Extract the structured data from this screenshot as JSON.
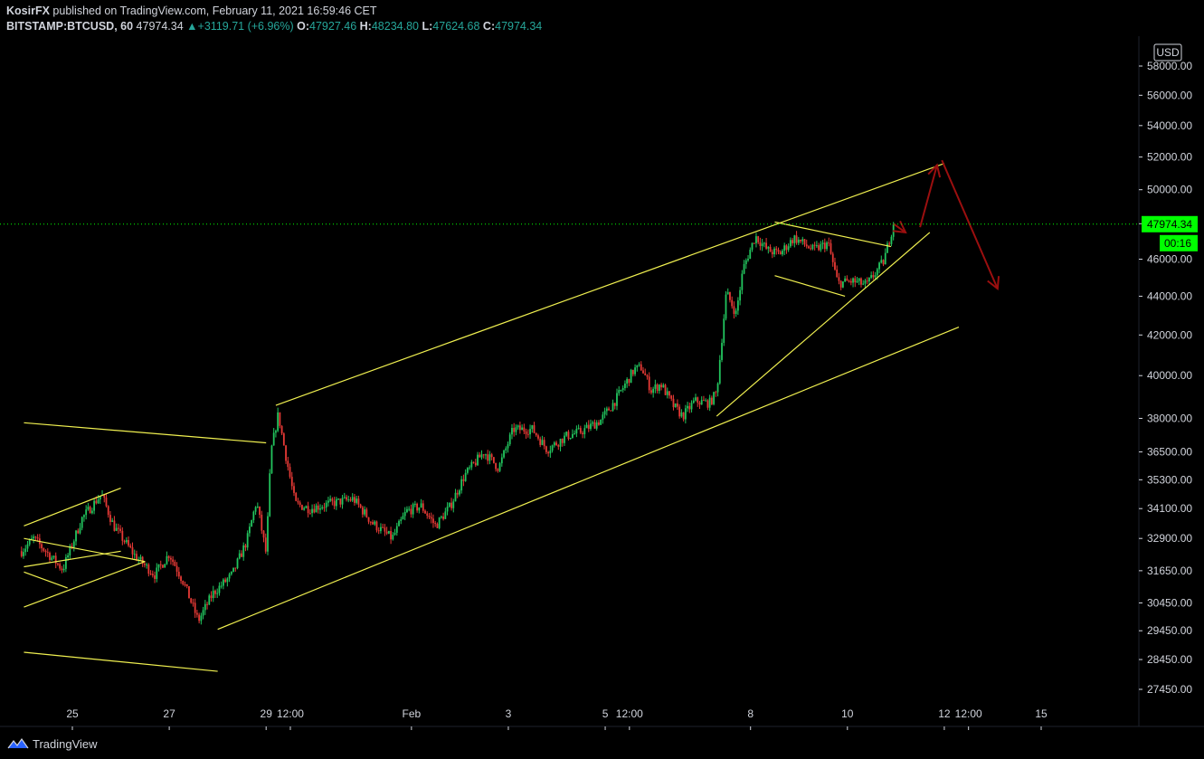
{
  "header": {
    "author": "KosirFX",
    "published_text": "published on TradingView.com, February 11, 2021 16:59:46 CET",
    "symbol_label": "BITSTAMP:BTCUSD, 60",
    "last": "47974.34",
    "change": "+3119.71 (+6.96%)",
    "ohlc": [
      {
        "k": "O:",
        "v": "47927.46"
      },
      {
        "k": "H:",
        "v": "48234.80"
      },
      {
        "k": "L:",
        "v": "47624.68"
      },
      {
        "k": "C:",
        "v": "47974.34"
      }
    ]
  },
  "footer": {
    "brand": "TradingView"
  },
  "colors": {
    "up": "#26a69a",
    "down": "#ef5350",
    "candle_up": "#22c55e",
    "candle_down": "#e53935",
    "trendline": "#f0f050",
    "arrow": "#9b0f0f",
    "price_tag": "#00ff00"
  },
  "chart_data": {
    "type": "candlestick",
    "symbol": "BITSTAMP:BTCUSD",
    "interval": "60",
    "currency": "USD",
    "last_price": "47974.34",
    "countdown": "00:16",
    "y_ticks": [
      "58000.00",
      "56000.00",
      "54000.00",
      "52000.00",
      "50000.00",
      "48000.00",
      "46000.00",
      "44000.00",
      "42000.00",
      "40000.00",
      "38000.00",
      "36500.00",
      "35300.00",
      "34100.00",
      "32900.00",
      "31650.00",
      "30450.00",
      "29450.00",
      "28450.00",
      "27450.00"
    ],
    "x_ticks": [
      "25",
      "27",
      "29",
      "12:00",
      "Feb",
      "3",
      "5",
      "12:00",
      "8",
      "10",
      "12",
      "12:00",
      "15"
    ],
    "y_scale": "log",
    "grid": false,
    "price_path": [
      {
        "d": 23.95,
        "p": 32400
      },
      {
        "d": 24.2,
        "p": 32900
      },
      {
        "d": 24.55,
        "p": 32200
      },
      {
        "d": 24.8,
        "p": 31700
      },
      {
        "d": 25.2,
        "p": 33700
      },
      {
        "d": 25.6,
        "p": 34700
      },
      {
        "d": 25.85,
        "p": 33400
      },
      {
        "d": 26.3,
        "p": 32200
      },
      {
        "d": 26.7,
        "p": 31500
      },
      {
        "d": 27.0,
        "p": 32300
      },
      {
        "d": 27.3,
        "p": 31200
      },
      {
        "d": 27.6,
        "p": 29800
      },
      {
        "d": 27.9,
        "p": 30800
      },
      {
        "d": 28.3,
        "p": 31500
      },
      {
        "d": 28.6,
        "p": 32800
      },
      {
        "d": 28.8,
        "p": 34400
      },
      {
        "d": 29.0,
        "p": 32300
      },
      {
        "d": 29.1,
        "p": 36500
      },
      {
        "d": 29.25,
        "p": 38200
      },
      {
        "d": 29.4,
        "p": 36400
      },
      {
        "d": 29.6,
        "p": 34300
      },
      {
        "d": 29.9,
        "p": 34100
      },
      {
        "d": 30.3,
        "p": 34300
      },
      {
        "d": 30.8,
        "p": 34500
      },
      {
        "d": 31.2,
        "p": 33500
      },
      {
        "d": 31.6,
        "p": 32900
      },
      {
        "d": 31.9,
        "p": 34000
      },
      {
        "d": 32.2,
        "p": 34200
      },
      {
        "d": 32.5,
        "p": 33400
      },
      {
        "d": 32.8,
        "p": 34200
      },
      {
        "d": 33.1,
        "p": 35500
      },
      {
        "d": 33.5,
        "p": 36500
      },
      {
        "d": 33.8,
        "p": 35800
      },
      {
        "d": 34.1,
        "p": 37500
      },
      {
        "d": 34.5,
        "p": 37500
      },
      {
        "d": 34.8,
        "p": 36600
      },
      {
        "d": 35.2,
        "p": 37200
      },
      {
        "d": 35.5,
        "p": 37400
      },
      {
        "d": 35.9,
        "p": 37900
      },
      {
        "d": 36.2,
        "p": 38800
      },
      {
        "d": 36.6,
        "p": 40300
      },
      {
        "d": 36.75,
        "p": 40400
      },
      {
        "d": 36.95,
        "p": 39300
      },
      {
        "d": 37.15,
        "p": 39600
      },
      {
        "d": 37.4,
        "p": 38600
      },
      {
        "d": 37.6,
        "p": 38100
      },
      {
        "d": 37.85,
        "p": 38800
      },
      {
        "d": 38.15,
        "p": 38700
      },
      {
        "d": 38.3,
        "p": 39200
      },
      {
        "d": 38.5,
        "p": 44200
      },
      {
        "d": 38.7,
        "p": 43100
      },
      {
        "d": 38.85,
        "p": 45500
      },
      {
        "d": 39.1,
        "p": 47300
      },
      {
        "d": 39.35,
        "p": 46500
      },
      {
        "d": 39.6,
        "p": 46300
      },
      {
        "d": 39.9,
        "p": 47200
      },
      {
        "d": 40.3,
        "p": 46500
      },
      {
        "d": 40.6,
        "p": 46900
      },
      {
        "d": 40.8,
        "p": 44700
      },
      {
        "d": 41.1,
        "p": 44800
      },
      {
        "d": 41.4,
        "p": 44600
      },
      {
        "d": 41.75,
        "p": 45900
      },
      {
        "d": 41.95,
        "p": 47974.34
      }
    ],
    "drawings": {
      "trendlines": [
        {
          "from": {
            "d": 24.0,
            "p": 33400
          },
          "to": {
            "d": 26.0,
            "p": 34950
          }
        },
        {
          "from": {
            "d": 24.0,
            "p": 31800
          },
          "to": {
            "d": 26.0,
            "p": 32400
          }
        },
        {
          "from": {
            "d": 24.0,
            "p": 32900
          },
          "to": {
            "d": 26.5,
            "p": 32000
          }
        },
        {
          "from": {
            "d": 24.0,
            "p": 31600
          },
          "to": {
            "d": 24.9,
            "p": 31000
          }
        },
        {
          "from": {
            "d": 24.0,
            "p": 30300
          },
          "to": {
            "d": 26.5,
            "p": 32000
          }
        },
        {
          "from": {
            "d": 24.0,
            "p": 37800
          },
          "to": {
            "d": 29.0,
            "p": 36900
          }
        },
        {
          "from": {
            "d": 24.0,
            "p": 28700
          },
          "to": {
            "d": 28.0,
            "p": 28050
          }
        },
        {
          "from": {
            "d": 28.0,
            "p": 29500
          },
          "to": {
            "d": 43.3,
            "p": 42400
          }
        },
        {
          "from": {
            "d": 29.2,
            "p": 38600
          },
          "to": {
            "d": 43.0,
            "p": 51600
          }
        },
        {
          "from": {
            "d": 38.3,
            "p": 38100
          },
          "to": {
            "d": 42.7,
            "p": 47500
          }
        },
        {
          "from": {
            "d": 39.5,
            "p": 48100
          },
          "to": {
            "d": 41.9,
            "p": 46700
          }
        },
        {
          "from": {
            "d": 39.5,
            "p": 45100
          },
          "to": {
            "d": 40.95,
            "p": 44000
          }
        }
      ],
      "arrows": [
        {
          "from": {
            "d": 41.95,
            "p": 48000
          },
          "to": {
            "d": 42.2,
            "p": 47500
          }
        },
        {
          "from": {
            "d": 42.5,
            "p": 47800
          },
          "to": {
            "d": 42.85,
            "p": 51500
          }
        },
        {
          "from": {
            "d": 42.95,
            "p": 51800
          },
          "to": {
            "d": 44.1,
            "p": 44400
          }
        }
      ]
    }
  }
}
